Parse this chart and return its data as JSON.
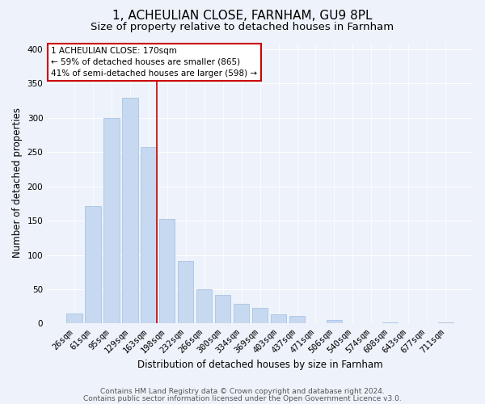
{
  "title": "1, ACHEULIAN CLOSE, FARNHAM, GU9 8PL",
  "subtitle": "Size of property relative to detached houses in Farnham",
  "xlabel": "Distribution of detached houses by size in Farnham",
  "ylabel": "Number of detached properties",
  "bar_labels": [
    "26sqm",
    "61sqm",
    "95sqm",
    "129sqm",
    "163sqm",
    "198sqm",
    "232sqm",
    "266sqm",
    "300sqm",
    "334sqm",
    "369sqm",
    "403sqm",
    "437sqm",
    "471sqm",
    "506sqm",
    "540sqm",
    "574sqm",
    "608sqm",
    "643sqm",
    "677sqm",
    "711sqm"
  ],
  "bar_values": [
    15,
    172,
    300,
    329,
    258,
    153,
    91,
    50,
    42,
    29,
    23,
    13,
    11,
    0,
    5,
    0,
    0,
    2,
    0,
    0,
    2
  ],
  "bar_color": "#c6d9f0",
  "bar_edge_color": "#9dbde0",
  "vline_index": 4,
  "vline_color": "#cc0000",
  "annotation_title": "1 ACHEULIAN CLOSE: 170sqm",
  "annotation_line1": "← 59% of detached houses are smaller (865)",
  "annotation_line2": "41% of semi-detached houses are larger (598) →",
  "annotation_box_color": "#ffffff",
  "annotation_box_edge": "#cc0000",
  "ylim": [
    0,
    410
  ],
  "yticks": [
    0,
    50,
    100,
    150,
    200,
    250,
    300,
    350,
    400
  ],
  "footer1": "Contains HM Land Registry data © Crown copyright and database right 2024.",
  "footer2": "Contains public sector information licensed under the Open Government Licence v3.0.",
  "bg_color": "#eef2fa",
  "plot_bg_color": "#eef2fa",
  "title_fontsize": 11,
  "subtitle_fontsize": 9.5,
  "label_fontsize": 8.5,
  "tick_fontsize": 7.5,
  "footer_fontsize": 6.5,
  "ann_fontsize": 7.5
}
